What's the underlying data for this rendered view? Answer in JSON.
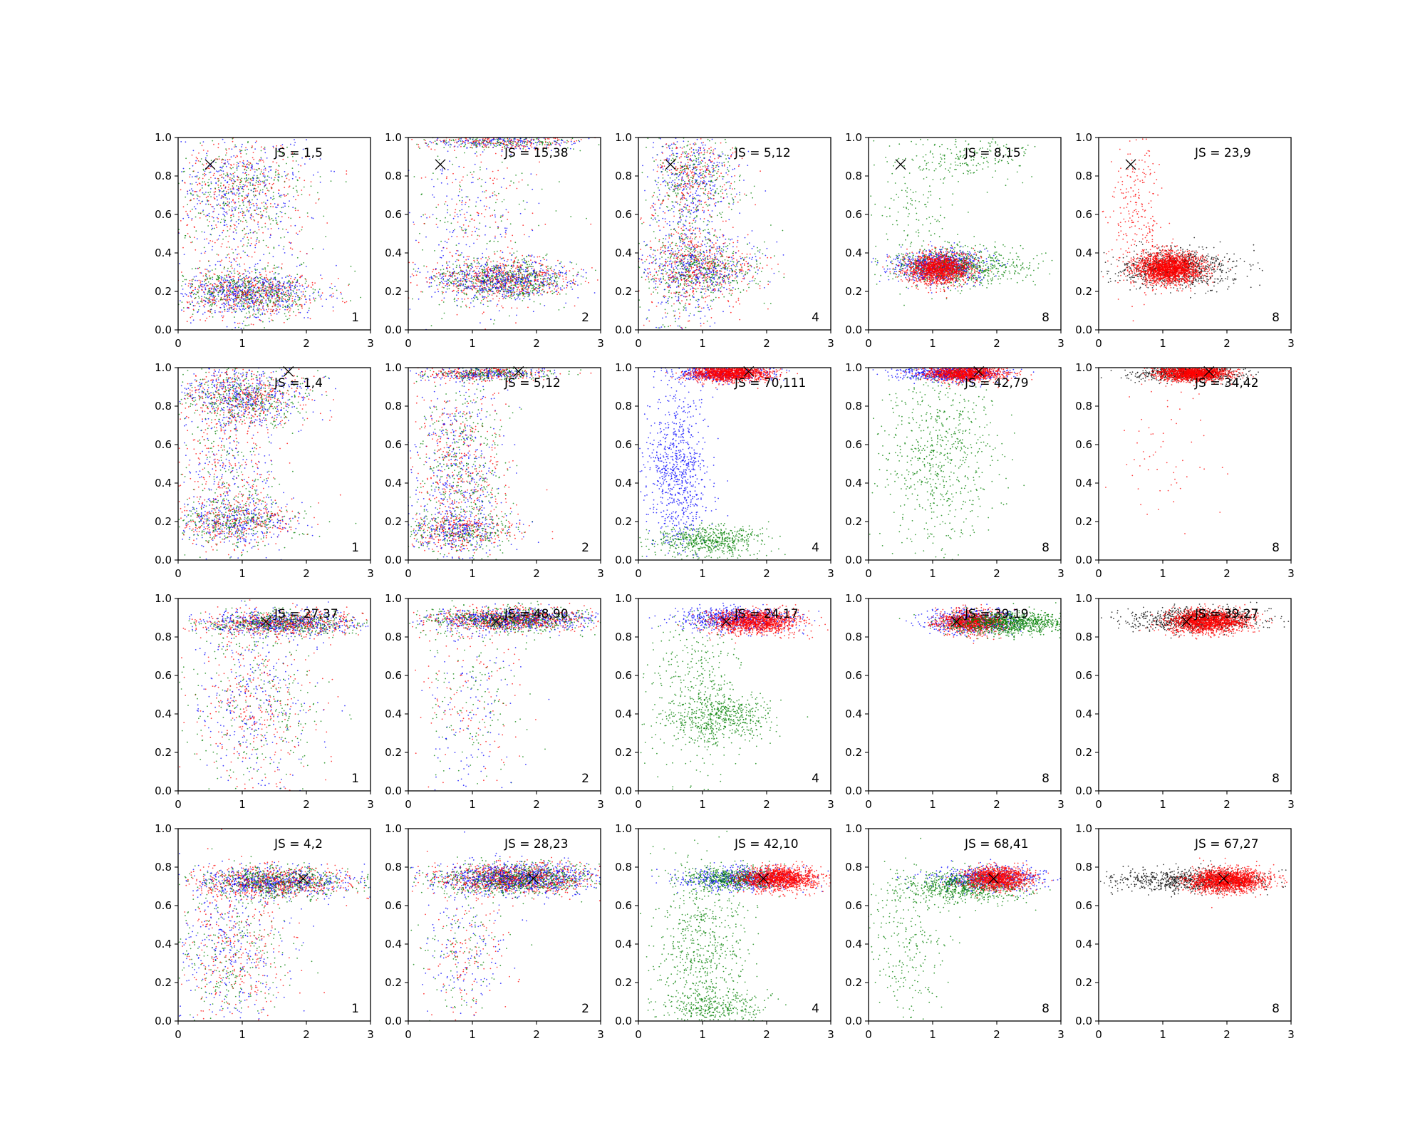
{
  "chart_data": {
    "type": "scatter",
    "layout": {
      "rows": 4,
      "cols": 5
    },
    "xlim": [
      0,
      3
    ],
    "ylim": [
      0,
      1
    ],
    "x_ticks": [
      0,
      1,
      2,
      3
    ],
    "y_ticks": [
      0.0,
      0.2,
      0.4,
      0.6,
      0.8,
      1.0
    ],
    "y_tick_labels": [
      "0.0",
      "0.2",
      "0.4",
      "0.6",
      "0.8",
      "1.0"
    ],
    "grid": false,
    "legend": "none",
    "colors": {
      "blue": "#0000ff",
      "green": "#008000",
      "red": "#ff0000",
      "black": "#000000",
      "marker": "#000000"
    },
    "rows": [
      {
        "marker": {
          "x": 0.5,
          "y": 0.86
        },
        "panels": [
          {
            "js_label": "JS = 1,5",
            "corner": "1",
            "clusters": [
              {
                "color": "mix",
                "cx": 1.1,
                "cy": 0.19,
                "sx": 0.55,
                "sy": 0.06,
                "n": 1500
              },
              {
                "color": "mix",
                "cx": 1.0,
                "cy": 0.75,
                "sx": 0.5,
                "sy": 0.12,
                "n": 700
              },
              {
                "color": "mix",
                "cx": 0.9,
                "cy": 0.5,
                "sx": 0.6,
                "sy": 0.3,
                "n": 700
              }
            ]
          },
          {
            "js_label": "JS = 15,38",
            "corner": "2",
            "clusters": [
              {
                "color": "mix",
                "cx": 1.5,
                "cy": 0.26,
                "sx": 0.55,
                "sy": 0.05,
                "n": 1600
              },
              {
                "color": "mix",
                "cx": 1.5,
                "cy": 0.98,
                "sx": 0.6,
                "sy": 0.02,
                "n": 600
              },
              {
                "color": "mix",
                "cx": 1.0,
                "cy": 0.55,
                "sx": 0.55,
                "sy": 0.25,
                "n": 500
              }
            ]
          },
          {
            "js_label": "JS = 5,12",
            "corner": "4",
            "clusters": [
              {
                "color": "mix",
                "cx": 1.0,
                "cy": 0.32,
                "sx": 0.45,
                "sy": 0.08,
                "n": 1200
              },
              {
                "color": "mix",
                "cx": 0.9,
                "cy": 0.8,
                "sx": 0.35,
                "sy": 0.12,
                "n": 800
              },
              {
                "color": "mix",
                "cx": 0.7,
                "cy": 0.4,
                "sx": 0.3,
                "sy": 0.3,
                "n": 600
              }
            ]
          },
          {
            "js_label": "JS = 8,15",
            "corner": "8",
            "clusters": [
              {
                "color": "blue",
                "cx": 1.1,
                "cy": 0.33,
                "sx": 0.35,
                "sy": 0.04,
                "n": 900
              },
              {
                "color": "green",
                "cx": 1.4,
                "cy": 0.33,
                "sx": 0.55,
                "sy": 0.05,
                "n": 700
              },
              {
                "color": "red",
                "cx": 1.1,
                "cy": 0.32,
                "sx": 0.25,
                "sy": 0.04,
                "n": 1400
              },
              {
                "color": "green",
                "cx": 1.5,
                "cy": 0.9,
                "sx": 0.5,
                "sy": 0.06,
                "n": 200
              },
              {
                "color": "green",
                "cx": 0.8,
                "cy": 0.6,
                "sx": 0.4,
                "sy": 0.2,
                "n": 150
              }
            ]
          },
          {
            "js_label": "JS = 23,9",
            "corner": "8",
            "clusters": [
              {
                "color": "black",
                "cx": 1.2,
                "cy": 0.32,
                "sx": 0.45,
                "sy": 0.05,
                "n": 900
              },
              {
                "color": "red",
                "cx": 1.1,
                "cy": 0.32,
                "sx": 0.25,
                "sy": 0.04,
                "n": 2000
              },
              {
                "color": "red",
                "cx": 0.6,
                "cy": 0.6,
                "sx": 0.2,
                "sy": 0.2,
                "n": 250
              }
            ]
          }
        ]
      },
      {
        "marker": {
          "x": 1.72,
          "y": 0.98
        },
        "panels": [
          {
            "js_label": "JS = 1,4",
            "corner": "1",
            "clusters": [
              {
                "color": "mix",
                "cx": 1.0,
                "cy": 0.85,
                "sx": 0.5,
                "sy": 0.08,
                "n": 1200
              },
              {
                "color": "mix",
                "cx": 0.9,
                "cy": 0.2,
                "sx": 0.5,
                "sy": 0.06,
                "n": 900
              },
              {
                "color": "mix",
                "cx": 0.8,
                "cy": 0.5,
                "sx": 0.4,
                "sy": 0.25,
                "n": 700
              }
            ]
          },
          {
            "js_label": "JS = 5,12",
            "corner": "2",
            "clusters": [
              {
                "color": "mix",
                "cx": 1.2,
                "cy": 0.97,
                "sx": 0.5,
                "sy": 0.02,
                "n": 700
              },
              {
                "color": "mix",
                "cx": 0.8,
                "cy": 0.45,
                "sx": 0.35,
                "sy": 0.25,
                "n": 1200
              },
              {
                "color": "mix",
                "cx": 0.8,
                "cy": 0.15,
                "sx": 0.45,
                "sy": 0.05,
                "n": 700
              }
            ]
          },
          {
            "js_label": "JS = 70,111",
            "corner": "4",
            "clusters": [
              {
                "color": "blue",
                "cx": 1.3,
                "cy": 0.97,
                "sx": 0.45,
                "sy": 0.02,
                "n": 500
              },
              {
                "color": "red",
                "cx": 1.4,
                "cy": 0.97,
                "sx": 0.3,
                "sy": 0.02,
                "n": 1400
              },
              {
                "color": "blue",
                "cx": 0.6,
                "cy": 0.45,
                "sx": 0.25,
                "sy": 0.22,
                "n": 800
              },
              {
                "color": "green",
                "cx": 1.1,
                "cy": 0.1,
                "sx": 0.45,
                "sy": 0.04,
                "n": 600
              }
            ]
          },
          {
            "js_label": "JS = 42,79",
            "corner": "8",
            "clusters": [
              {
                "color": "blue",
                "cx": 1.3,
                "cy": 0.97,
                "sx": 0.4,
                "sy": 0.02,
                "n": 700
              },
              {
                "color": "red",
                "cx": 1.5,
                "cy": 0.97,
                "sx": 0.3,
                "sy": 0.02,
                "n": 1200
              },
              {
                "color": "green",
                "cx": 1.1,
                "cy": 0.55,
                "sx": 0.45,
                "sy": 0.25,
                "n": 700
              }
            ]
          },
          {
            "js_label": "JS = 34,42",
            "corner": "8",
            "clusters": [
              {
                "color": "black",
                "cx": 1.4,
                "cy": 0.97,
                "sx": 0.4,
                "sy": 0.02,
                "n": 700
              },
              {
                "color": "red",
                "cx": 1.5,
                "cy": 0.97,
                "sx": 0.28,
                "sy": 0.02,
                "n": 1500
              },
              {
                "color": "red",
                "cx": 1.0,
                "cy": 0.5,
                "sx": 0.4,
                "sy": 0.25,
                "n": 60
              }
            ]
          }
        ]
      },
      {
        "marker": {
          "x": 1.37,
          "y": 0.88
        },
        "panels": [
          {
            "js_label": "JS = 27,37",
            "corner": "1",
            "clusters": [
              {
                "color": "mix",
                "cx": 1.6,
                "cy": 0.87,
                "sx": 0.6,
                "sy": 0.03,
                "n": 1600
              },
              {
                "color": "mix",
                "cx": 1.2,
                "cy": 0.45,
                "sx": 0.5,
                "sy": 0.25,
                "n": 900
              }
            ]
          },
          {
            "js_label": "JS = 48,90",
            "corner": "2",
            "clusters": [
              {
                "color": "mix",
                "cx": 1.6,
                "cy": 0.89,
                "sx": 0.6,
                "sy": 0.03,
                "n": 2000
              },
              {
                "color": "mix",
                "cx": 1.0,
                "cy": 0.5,
                "sx": 0.4,
                "sy": 0.25,
                "n": 400
              }
            ]
          },
          {
            "js_label": "JS = 24,17",
            "corner": "4",
            "clusters": [
              {
                "color": "blue",
                "cx": 1.5,
                "cy": 0.89,
                "sx": 0.45,
                "sy": 0.03,
                "n": 700
              },
              {
                "color": "red",
                "cx": 1.8,
                "cy": 0.88,
                "sx": 0.35,
                "sy": 0.03,
                "n": 1300
              },
              {
                "color": "green",
                "cx": 1.3,
                "cy": 0.38,
                "sx": 0.4,
                "sy": 0.06,
                "n": 500
              },
              {
                "color": "green",
                "cx": 0.9,
                "cy": 0.5,
                "sx": 0.35,
                "sy": 0.22,
                "n": 400
              }
            ]
          },
          {
            "js_label": "JS = 39,19",
            "corner": "8",
            "clusters": [
              {
                "color": "blue",
                "cx": 1.6,
                "cy": 0.88,
                "sx": 0.35,
                "sy": 0.03,
                "n": 600
              },
              {
                "color": "red",
                "cx": 1.6,
                "cy": 0.88,
                "sx": 0.25,
                "sy": 0.03,
                "n": 1000
              },
              {
                "color": "green",
                "cx": 2.2,
                "cy": 0.87,
                "sx": 0.45,
                "sy": 0.03,
                "n": 1000
              }
            ]
          },
          {
            "js_label": "JS = 39,27",
            "corner": "8",
            "clusters": [
              {
                "color": "black",
                "cx": 1.5,
                "cy": 0.89,
                "sx": 0.55,
                "sy": 0.03,
                "n": 800
              },
              {
                "color": "red",
                "cx": 1.7,
                "cy": 0.88,
                "sx": 0.3,
                "sy": 0.03,
                "n": 1600
              }
            ]
          }
        ]
      },
      {
        "marker": {
          "x": 1.95,
          "y": 0.74
        },
        "panels": [
          {
            "js_label": "JS = 4,2",
            "corner": "1",
            "clusters": [
              {
                "color": "mix",
                "cx": 1.5,
                "cy": 0.72,
                "sx": 0.6,
                "sy": 0.04,
                "n": 1800
              },
              {
                "color": "mix",
                "cx": 0.8,
                "cy": 0.35,
                "sx": 0.45,
                "sy": 0.2,
                "n": 900
              }
            ]
          },
          {
            "js_label": "JS = 28,23",
            "corner": "2",
            "clusters": [
              {
                "color": "mix",
                "cx": 1.7,
                "cy": 0.74,
                "sx": 0.6,
                "sy": 0.04,
                "n": 2600
              },
              {
                "color": "mix",
                "cx": 0.9,
                "cy": 0.35,
                "sx": 0.35,
                "sy": 0.2,
                "n": 400
              }
            ]
          },
          {
            "js_label": "JS = 42,10",
            "corner": "4",
            "clusters": [
              {
                "color": "blue",
                "cx": 1.6,
                "cy": 0.74,
                "sx": 0.45,
                "sy": 0.03,
                "n": 600
              },
              {
                "color": "green",
                "cx": 1.5,
                "cy": 0.74,
                "sx": 0.4,
                "sy": 0.03,
                "n": 500
              },
              {
                "color": "red",
                "cx": 2.2,
                "cy": 0.74,
                "sx": 0.3,
                "sy": 0.03,
                "n": 1400
              },
              {
                "color": "green",
                "cx": 1.0,
                "cy": 0.35,
                "sx": 0.35,
                "sy": 0.25,
                "n": 700
              },
              {
                "color": "green",
                "cx": 1.2,
                "cy": 0.08,
                "sx": 0.4,
                "sy": 0.04,
                "n": 300
              }
            ]
          },
          {
            "js_label": "JS = 68,41",
            "corner": "8",
            "clusters": [
              {
                "color": "blue",
                "cx": 1.9,
                "cy": 0.74,
                "sx": 0.45,
                "sy": 0.03,
                "n": 600
              },
              {
                "color": "green",
                "cx": 1.5,
                "cy": 0.7,
                "sx": 0.5,
                "sy": 0.04,
                "n": 800
              },
              {
                "color": "red",
                "cx": 2.0,
                "cy": 0.74,
                "sx": 0.25,
                "sy": 0.03,
                "n": 1200
              },
              {
                "color": "green",
                "cx": 0.6,
                "cy": 0.4,
                "sx": 0.3,
                "sy": 0.2,
                "n": 250
              }
            ]
          },
          {
            "js_label": "JS = 67,27",
            "corner": "8",
            "clusters": [
              {
                "color": "black",
                "cx": 1.4,
                "cy": 0.73,
                "sx": 0.6,
                "sy": 0.03,
                "n": 800
              },
              {
                "color": "red",
                "cx": 2.0,
                "cy": 0.73,
                "sx": 0.3,
                "sy": 0.03,
                "n": 1800
              }
            ]
          }
        ]
      }
    ]
  }
}
